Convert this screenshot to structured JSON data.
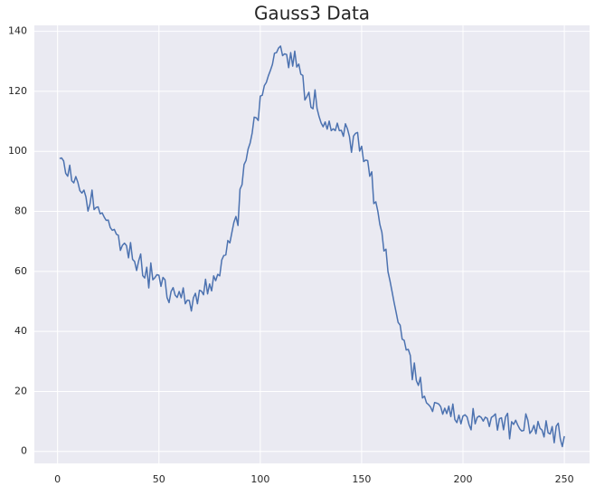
{
  "chart_data": {
    "type": "line",
    "title": "Gauss3 Data",
    "x": [
      1,
      2,
      3,
      4,
      5,
      6,
      7,
      8,
      9,
      10,
      11,
      12,
      13,
      14,
      15,
      16,
      17,
      18,
      19,
      20,
      21,
      22,
      23,
      24,
      25,
      26,
      27,
      28,
      29,
      30,
      31,
      32,
      33,
      34,
      35,
      36,
      37,
      38,
      39,
      40,
      41,
      42,
      43,
      44,
      45,
      46,
      47,
      48,
      49,
      50,
      51,
      52,
      53,
      54,
      55,
      56,
      57,
      58,
      59,
      60,
      61,
      62,
      63,
      64,
      65,
      66,
      67,
      68,
      69,
      70,
      71,
      72,
      73,
      74,
      75,
      76,
      77,
      78,
      79,
      80,
      81,
      82,
      83,
      84,
      85,
      86,
      87,
      88,
      89,
      90,
      91,
      92,
      93,
      94,
      95,
      96,
      97,
      98,
      99,
      100,
      101,
      102,
      103,
      104,
      105,
      106,
      107,
      108,
      109,
      110,
      111,
      112,
      113,
      114,
      115,
      116,
      117,
      118,
      119,
      120,
      121,
      122,
      123,
      124,
      125,
      126,
      127,
      128,
      129,
      130,
      131,
      132,
      133,
      134,
      135,
      136,
      137,
      138,
      139,
      140,
      141,
      142,
      143,
      144,
      145,
      146,
      147,
      148,
      149,
      150,
      151,
      152,
      153,
      154,
      155,
      156,
      157,
      158,
      159,
      160,
      161,
      162,
      163,
      164,
      165,
      166,
      167,
      168,
      169,
      170,
      171,
      172,
      173,
      174,
      175,
      176,
      177,
      178,
      179,
      180,
      181,
      182,
      183,
      184,
      185,
      186,
      187,
      188,
      189,
      190,
      191,
      192,
      193,
      194,
      195,
      196,
      197,
      198,
      199,
      200,
      201,
      202,
      203,
      204,
      205,
      206,
      207,
      208,
      209,
      210,
      211,
      212,
      213,
      214,
      215,
      216,
      217,
      218,
      219,
      220,
      221,
      222,
      223,
      224,
      225,
      226,
      227,
      228,
      229,
      230,
      231,
      232,
      233,
      234,
      235,
      236,
      237,
      238,
      239,
      240,
      241,
      242,
      243,
      244,
      245,
      246,
      247,
      248,
      249,
      250
    ],
    "series": [
      {
        "color": "#4c72b0",
        "values": [
          97.6,
          97.8,
          96.8,
          92.7,
          91.7,
          95.4,
          90.2,
          89.5,
          91.6,
          89.7,
          86.9,
          86.1,
          87.1,
          84.8,
          80.1,
          82.5,
          87.1,
          80.6,
          81.3,
          81.5,
          79.2,
          79.5,
          78.1,
          77.0,
          77.1,
          74.6,
          73.7,
          74.0,
          72.4,
          72.0,
          67.0,
          68.7,
          69.4,
          68.6,
          64.5,
          69.6,
          64.0,
          63.3,
          60.3,
          63.5,
          65.8,
          58.6,
          57.8,
          61.4,
          54.5,
          62.8,
          57.2,
          57.9,
          58.9,
          58.7,
          55.0,
          58.0,
          57.2,
          51.3,
          49.6,
          53.3,
          54.6,
          52.1,
          51.3,
          53.3,
          51.2,
          54.5,
          49.2,
          50.4,
          50.3,
          46.8,
          51.2,
          52.7,
          49.2,
          53.7,
          53.4,
          52.2,
          57.4,
          52.5,
          55.8,
          53.5,
          58.5,
          56.9,
          59.0,
          58.5,
          63.8,
          65.3,
          65.5,
          70.3,
          69.5,
          73.0,
          76.4,
          78.3,
          75.3,
          87.4,
          88.9,
          95.6,
          97.0,
          100.8,
          102.8,
          106.1,
          111.4,
          111.2,
          110.3,
          118.4,
          118.7,
          121.9,
          123.0,
          125.2,
          127.0,
          129.0,
          132.7,
          132.9,
          134.4,
          135.1,
          131.9,
          132.5,
          132.3,
          127.9,
          132.9,
          128.4,
          133.4,
          128.1,
          129.1,
          125.7,
          125.3,
          117.1,
          118.3,
          119.7,
          114.7,
          114.2,
          120.5,
          114.3,
          111.6,
          109.5,
          108.2,
          109.8,
          107.4,
          110.1,
          106.9,
          107.5,
          106.9,
          109.4,
          106.9,
          107.0,
          105.0,
          109.2,
          107.5,
          104.9,
          99.7,
          105.1,
          106.0,
          106.3,
          100.1,
          101.7,
          96.6,
          97.1,
          96.9,
          91.7,
          93.2,
          82.6,
          83.2,
          80.0,
          75.6,
          73.0,
          66.8,
          67.4,
          59.9,
          56.8,
          53.3,
          49.7,
          46.4,
          43.0,
          42.1,
          37.4,
          37.0,
          33.8,
          34.0,
          32.0,
          23.9,
          29.5,
          23.6,
          22.0,
          24.7,
          17.8,
          18.4,
          16.2,
          15.6,
          14.8,
          13.3,
          16.3,
          16.1,
          15.8,
          14.9,
          12.4,
          14.4,
          12.6,
          15.1,
          11.6,
          15.8,
          10.6,
          9.6,
          12.1,
          9.2,
          11.8,
          12.2,
          11.5,
          8.9,
          7.2,
          14.3,
          9.2,
          11.3,
          11.8,
          11.3,
          10.1,
          11.4,
          11.0,
          8.3,
          11.3,
          11.8,
          12.5,
          7.1,
          10.9,
          11.2,
          7.2,
          11.5,
          12.7,
          4.2,
          9.9,
          9.0,
          10.4,
          8.8,
          7.5,
          6.8,
          7.0,
          12.5,
          10.4,
          6.0,
          6.9,
          8.7,
          5.9,
          10.0,
          7.7,
          7.1,
          4.8,
          10.2,
          6.2,
          5.8,
          8.3,
          2.9,
          8.4,
          9.4,
          4.2,
          1.6,
          5.1
        ]
      }
    ],
    "xlim": [
      -11.45,
      262.45
    ],
    "xticks": [
      0,
      50,
      100,
      150,
      200,
      250
    ],
    "ylim": [
      -4,
      142
    ],
    "yticks": [
      0,
      20,
      40,
      60,
      80,
      100,
      120,
      140
    ],
    "grid": true
  }
}
